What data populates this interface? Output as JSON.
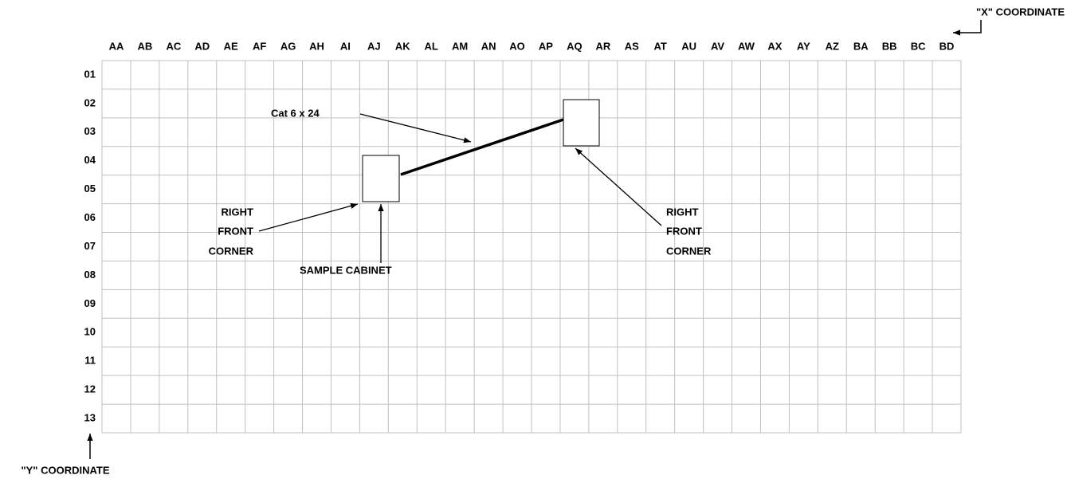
{
  "title_x": "\"X\" COORDINATE",
  "title_y": "\"Y\" COORDINATE",
  "columns": [
    "AA",
    "AB",
    "AC",
    "AD",
    "AE",
    "AF",
    "AG",
    "AH",
    "AI",
    "AJ",
    "AK",
    "AL",
    "AM",
    "AN",
    "AO",
    "AP",
    "AQ",
    "AR",
    "AS",
    "AT",
    "AU",
    "AV",
    "AW",
    "AX",
    "AY",
    "AZ",
    "BA",
    "BB",
    "BC",
    "BD"
  ],
  "rows": [
    "01",
    "02",
    "03",
    "04",
    "05",
    "06",
    "07",
    "08",
    "09",
    "10",
    "11",
    "12",
    "13"
  ],
  "annotations": {
    "cable": "Cat 6 x 24",
    "left_corner": [
      "RIGHT",
      "FRONT",
      "CORNER"
    ],
    "sample": "SAMPLE CABINET",
    "right_corner": [
      "RIGHT",
      "FRONT",
      "CORNER"
    ]
  }
}
